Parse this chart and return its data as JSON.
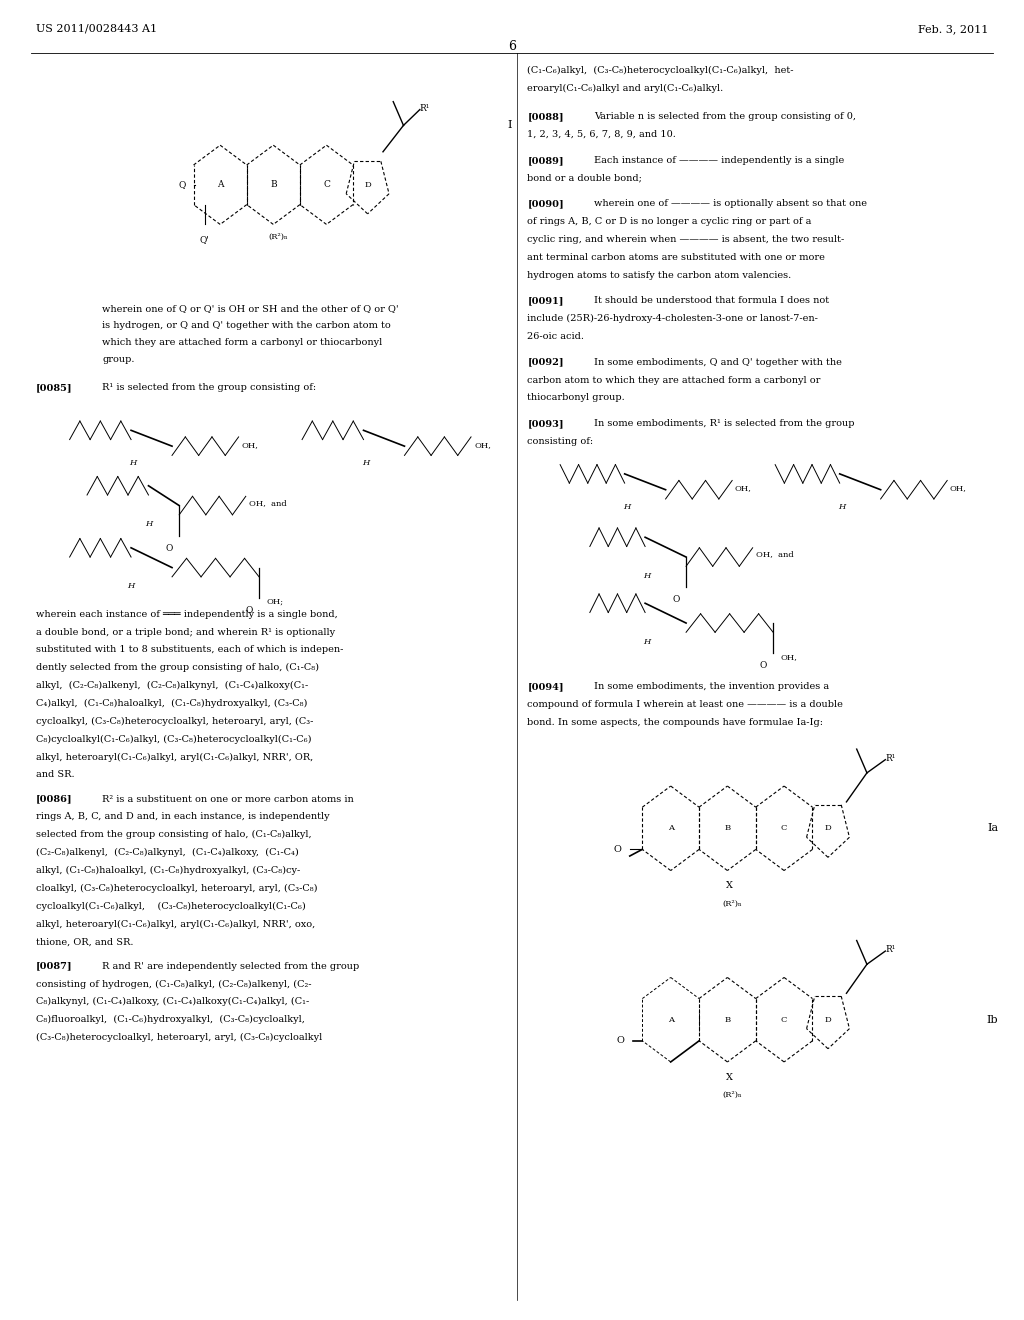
{
  "patent_number": "US 2011/0028443 A1",
  "date": "Feb. 3, 2011",
  "page_number": "6",
  "bg": "#ffffff",
  "fg": "#000000",
  "body_fs": 7.0,
  "tag_fs": 7.0,
  "header_fs": 8.0
}
